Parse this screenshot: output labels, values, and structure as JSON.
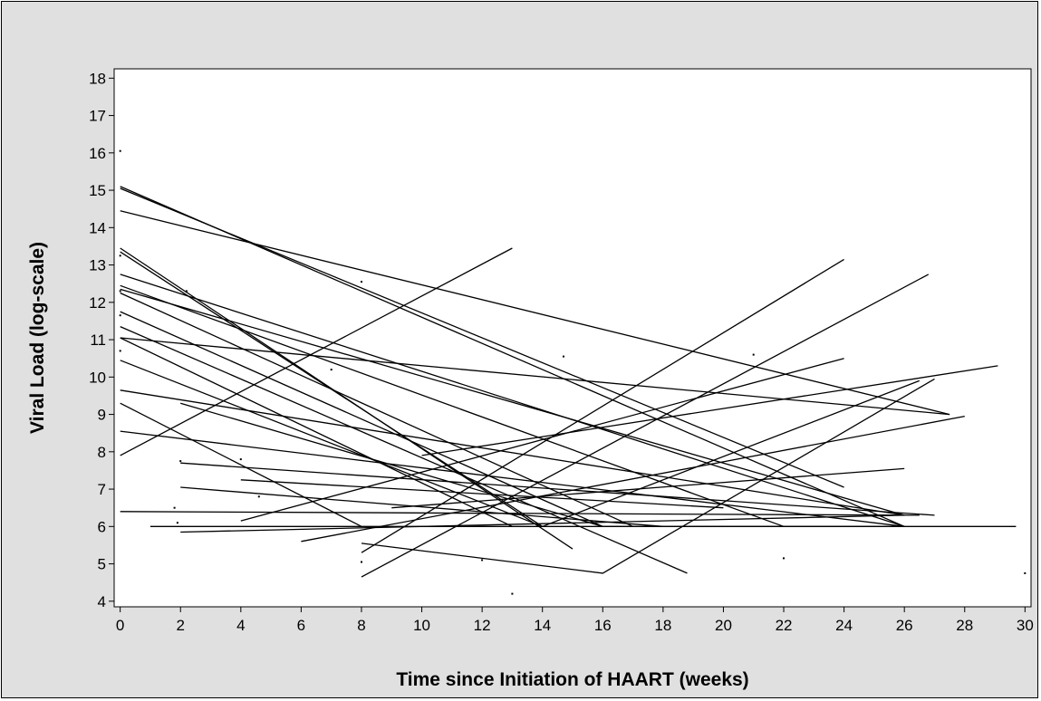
{
  "colors": {
    "background": "#e0e0e0",
    "plot_area": "#ffffff",
    "lines": "#000000"
  },
  "chart_data": {
    "type": "line",
    "title": "",
    "xlabel": "Time since Initiation of HAART (weeks)",
    "ylabel": "Viral Load (log-scale)",
    "xlim": [
      -0.2,
      30.2
    ],
    "ylim": [
      3.85,
      18.25
    ],
    "x_ticks": [
      0,
      2,
      4,
      6,
      8,
      10,
      12,
      14,
      16,
      18,
      20,
      22,
      24,
      26,
      28,
      30
    ],
    "y_ticks": [
      4,
      5,
      6,
      7,
      8,
      9,
      10,
      11,
      12,
      13,
      14,
      15,
      16,
      17,
      18
    ],
    "grid": false,
    "legend": "none",
    "series": [
      {
        "x": [
          0,
          26
        ],
        "y": [
          15.1,
          6.0
        ]
      },
      {
        "x": [
          0,
          24
        ],
        "y": [
          15.05,
          7.05
        ]
      },
      {
        "x": [
          0,
          27.5
        ],
        "y": [
          14.45,
          9.0
        ]
      },
      {
        "x": [
          0,
          15
        ],
        "y": [
          13.45,
          5.4
        ]
      },
      {
        "x": [
          0,
          14
        ],
        "y": [
          13.35,
          6.0
        ]
      },
      {
        "x": [
          0,
          26
        ],
        "y": [
          12.75,
          6.0
        ]
      },
      {
        "x": [
          0,
          22
        ],
        "y": [
          12.45,
          6.0
        ]
      },
      {
        "x": [
          0,
          26
        ],
        "y": [
          12.35,
          6.3
        ]
      },
      {
        "x": [
          0,
          17
        ],
        "y": [
          12.25,
          6.0
        ]
      },
      {
        "x": [
          0,
          16
        ],
        "y": [
          11.75,
          6.0
        ]
      },
      {
        "x": [
          0,
          18.8
        ],
        "y": [
          11.35,
          4.75
        ]
      },
      {
        "x": [
          0,
          13
        ],
        "y": [
          11.05,
          6.0
        ]
      },
      {
        "x": [
          0,
          27.5
        ],
        "y": [
          11.05,
          9.0
        ]
      },
      {
        "x": [
          0,
          14
        ],
        "y": [
          10.45,
          6.0
        ]
      },
      {
        "x": [
          0,
          26
        ],
        "y": [
          9.65,
          6.3
        ]
      },
      {
        "x": [
          0,
          8
        ],
        "y": [
          9.3,
          6.0
        ]
      },
      {
        "x": [
          0,
          26
        ],
        "y": [
          8.55,
          6.0
        ]
      },
      {
        "x": [
          0,
          26.5
        ],
        "y": [
          6.4,
          6.3
        ]
      },
      {
        "x": [
          0,
          13
        ],
        "y": [
          7.9,
          13.45
        ]
      },
      {
        "x": [
          1,
          29.7
        ],
        "y": [
          6.0,
          6.0
        ]
      },
      {
        "x": [
          2,
          16,
          26
        ],
        "y": [
          9.3,
          6.0,
          6.0
        ]
      },
      {
        "x": [
          2,
          27
        ],
        "y": [
          7.7,
          6.3
        ]
      },
      {
        "x": [
          2,
          18
        ],
        "y": [
          7.05,
          6.0
        ]
      },
      {
        "x": [
          2,
          26
        ],
        "y": [
          5.85,
          6.3
        ]
      },
      {
        "x": [
          4,
          24
        ],
        "y": [
          6.15,
          10.5
        ]
      },
      {
        "x": [
          4,
          20
        ],
        "y": [
          7.25,
          6.5
        ]
      },
      {
        "x": [
          6,
          28
        ],
        "y": [
          5.6,
          8.95
        ]
      },
      {
        "x": [
          8,
          24
        ],
        "y": [
          5.3,
          13.15
        ]
      },
      {
        "x": [
          8,
          16,
          27
        ],
        "y": [
          5.55,
          4.75,
          9.95
        ]
      },
      {
        "x": [
          8,
          26.8
        ],
        "y": [
          4.65,
          12.75
        ]
      },
      {
        "x": [
          9,
          26
        ],
        "y": [
          6.5,
          7.55
        ]
      },
      {
        "x": [
          10,
          29.1
        ],
        "y": [
          7.9,
          10.3
        ]
      },
      {
        "x": [
          14,
          26.5
        ],
        "y": [
          6.0,
          9.9
        ]
      }
    ],
    "scatter": [
      {
        "x": 0,
        "y": 16.05
      },
      {
        "x": 0,
        "y": 13.25
      },
      {
        "x": 0,
        "y": 12.3
      },
      {
        "x": 0,
        "y": 11.65
      },
      {
        "x": 0,
        "y": 10.7
      },
      {
        "x": 1.8,
        "y": 6.5
      },
      {
        "x": 1.9,
        "y": 6.1
      },
      {
        "x": 2,
        "y": 7.75
      },
      {
        "x": 2.2,
        "y": 12.3
      },
      {
        "x": 4,
        "y": 7.8
      },
      {
        "x": 4.6,
        "y": 6.8
      },
      {
        "x": 7,
        "y": 10.2
      },
      {
        "x": 8,
        "y": 12.55
      },
      {
        "x": 8,
        "y": 5.05
      },
      {
        "x": 12,
        "y": 5.1
      },
      {
        "x": 13,
        "y": 4.2
      },
      {
        "x": 14.7,
        "y": 10.55
      },
      {
        "x": 21,
        "y": 10.6
      },
      {
        "x": 22,
        "y": 5.15
      },
      {
        "x": 30,
        "y": 4.75
      }
    ]
  }
}
